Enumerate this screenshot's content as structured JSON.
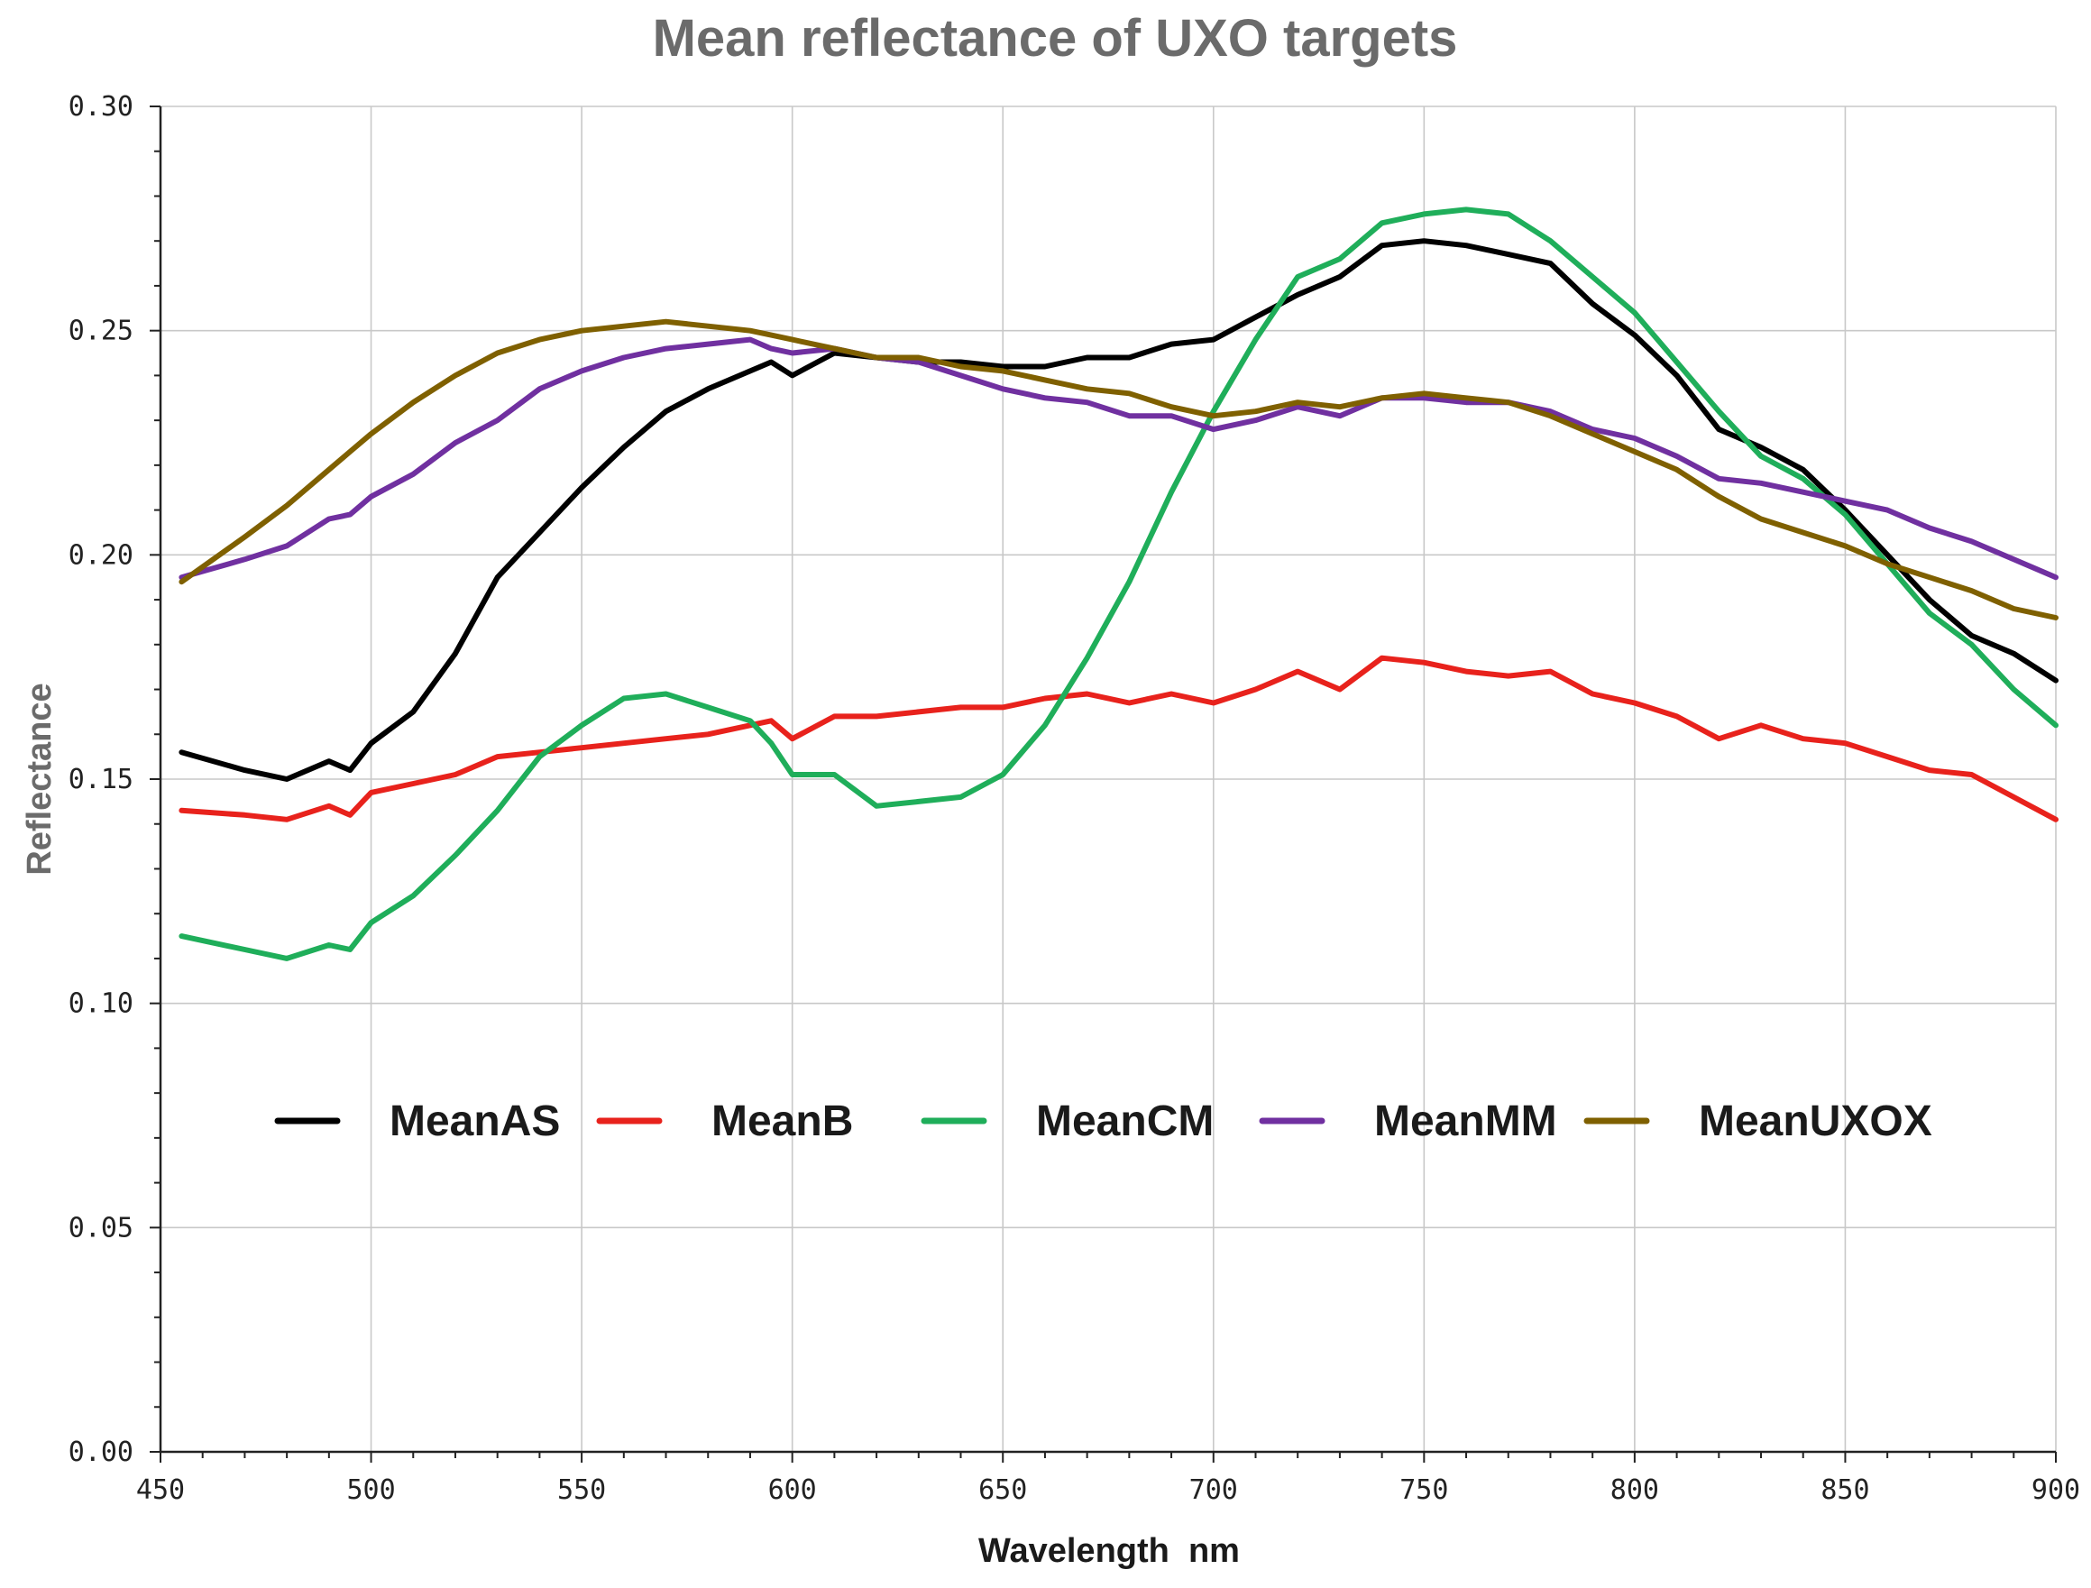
{
  "chart_data": {
    "type": "line",
    "title": "Mean reflectance of UXO targets",
    "xlabel": "Wavelength  nm",
    "ylabel": "Reflectance",
    "xlim": [
      450,
      900
    ],
    "ylim": [
      0.0,
      0.3
    ],
    "grid": true,
    "legend_position": "center",
    "x_ticks": [
      450,
      500,
      550,
      600,
      650,
      700,
      750,
      800,
      850,
      900
    ],
    "x_tick_labels": [
      "450",
      "500",
      "550",
      "600",
      "650",
      "700",
      "750",
      "800",
      "850",
      "900"
    ],
    "y_ticks": [
      0.0,
      0.05,
      0.1,
      0.15,
      0.2,
      0.25,
      0.3
    ],
    "y_tick_labels": [
      "0.00",
      "0.05",
      "0.10",
      "0.15",
      "0.20",
      "0.25",
      "0.30"
    ],
    "x": [
      455,
      470,
      480,
      490,
      495,
      500,
      510,
      520,
      530,
      540,
      550,
      560,
      570,
      580,
      590,
      595,
      600,
      610,
      620,
      630,
      640,
      650,
      660,
      670,
      680,
      690,
      700,
      710,
      720,
      730,
      740,
      750,
      760,
      770,
      780,
      790,
      800,
      810,
      820,
      830,
      840,
      850,
      860,
      870,
      880,
      890,
      900
    ],
    "series": [
      {
        "name": "MeanAS",
        "color": "#000000",
        "values": [
          0.156,
          0.152,
          0.15,
          0.154,
          0.152,
          0.158,
          0.165,
          0.178,
          0.195,
          0.205,
          0.215,
          0.224,
          0.232,
          0.237,
          0.241,
          0.243,
          0.24,
          0.245,
          0.244,
          0.243,
          0.243,
          0.242,
          0.242,
          0.244,
          0.244,
          0.247,
          0.248,
          0.253,
          0.258,
          0.262,
          0.269,
          0.27,
          0.269,
          0.267,
          0.265,
          0.256,
          0.249,
          0.24,
          0.228,
          0.224,
          0.219,
          0.21,
          0.2,
          0.19,
          0.182,
          0.178,
          0.172
        ]
      },
      {
        "name": "MeanB",
        "color": "#e8221c",
        "values": [
          0.143,
          0.142,
          0.141,
          0.144,
          0.142,
          0.147,
          0.149,
          0.151,
          0.155,
          0.156,
          0.157,
          0.158,
          0.159,
          0.16,
          0.162,
          0.163,
          0.159,
          0.164,
          0.164,
          0.165,
          0.166,
          0.166,
          0.168,
          0.169,
          0.167,
          0.169,
          0.167,
          0.17,
          0.174,
          0.17,
          0.177,
          0.176,
          0.174,
          0.173,
          0.174,
          0.169,
          0.167,
          0.164,
          0.159,
          0.162,
          0.159,
          0.158,
          0.155,
          0.152,
          0.151,
          0.146,
          0.141
        ]
      },
      {
        "name": "MeanCM",
        "color": "#1fae5a",
        "values": [
          0.115,
          0.112,
          0.11,
          0.113,
          0.112,
          0.118,
          0.124,
          0.133,
          0.143,
          0.155,
          0.162,
          0.168,
          0.169,
          0.166,
          0.163,
          0.158,
          0.151,
          0.151,
          0.144,
          0.145,
          0.146,
          0.151,
          0.162,
          0.177,
          0.194,
          0.214,
          0.232,
          0.248,
          0.262,
          0.266,
          0.274,
          0.276,
          0.277,
          0.276,
          0.27,
          0.262,
          0.254,
          0.243,
          0.232,
          0.222,
          0.217,
          0.209,
          0.198,
          0.187,
          0.18,
          0.17,
          0.162
        ]
      },
      {
        "name": "MeanMM",
        "color": "#7030a0",
        "values": [
          0.195,
          0.199,
          0.202,
          0.208,
          0.209,
          0.213,
          0.218,
          0.225,
          0.23,
          0.237,
          0.241,
          0.244,
          0.246,
          0.247,
          0.248,
          0.246,
          0.245,
          0.246,
          0.244,
          0.243,
          0.24,
          0.237,
          0.235,
          0.234,
          0.231,
          0.231,
          0.228,
          0.23,
          0.233,
          0.231,
          0.235,
          0.235,
          0.234,
          0.234,
          0.232,
          0.228,
          0.226,
          0.222,
          0.217,
          0.216,
          0.214,
          0.212,
          0.21,
          0.206,
          0.203,
          0.199,
          0.195
        ]
      },
      {
        "name": "MeanUXOX",
        "color": "#7f6000",
        "values": [
          0.194,
          0.204,
          0.211,
          0.219,
          0.223,
          0.227,
          0.234,
          0.24,
          0.245,
          0.248,
          0.25,
          0.251,
          0.252,
          0.251,
          0.25,
          0.249,
          0.248,
          0.246,
          0.244,
          0.244,
          0.242,
          0.241,
          0.239,
          0.237,
          0.236,
          0.233,
          0.231,
          0.232,
          0.234,
          0.233,
          0.235,
          0.236,
          0.235,
          0.234,
          0.231,
          0.227,
          0.223,
          0.219,
          0.213,
          0.208,
          0.205,
          0.202,
          0.198,
          0.195,
          0.192,
          0.188,
          0.186
        ]
      }
    ]
  }
}
